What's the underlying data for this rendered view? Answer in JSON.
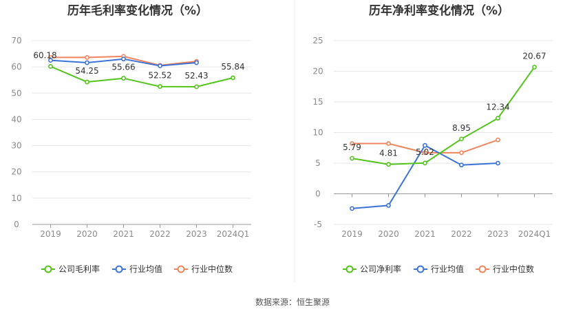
{
  "source_label": "数据来源：恒生聚源",
  "legend_colors": {
    "company": "#52c41a",
    "industry_avg": "#3a72d8",
    "industry_median": "#f0845c"
  },
  "chart_data": [
    {
      "type": "line",
      "title": "历年毛利率变化情况（%）",
      "categories": [
        "2019",
        "2020",
        "2021",
        "2022",
        "2023",
        "2024Q1"
      ],
      "ylim": [
        0,
        70
      ],
      "yticks": [
        0,
        10,
        20,
        30,
        40,
        50,
        60,
        70
      ],
      "grid": true,
      "legend_position": "bottom",
      "series": [
        {
          "name": "公司毛利率",
          "color": "#52c41a",
          "values": [
            60.18,
            54.25,
            55.66,
            52.52,
            52.43,
            55.84
          ],
          "labels": [
            "60.18",
            "54.25",
            "55.66",
            "52.52",
            "52.43",
            "55.84"
          ]
        },
        {
          "name": "行业均值",
          "color": "#3a72d8",
          "values": [
            62.5,
            61.6,
            63.0,
            60.4,
            61.6,
            null
          ]
        },
        {
          "name": "行业中位数",
          "color": "#f0845c",
          "values": [
            63.6,
            63.6,
            64.0,
            60.6,
            62.1,
            null
          ]
        }
      ]
    },
    {
      "type": "line",
      "title": "历年净利率变化情况（%）",
      "categories": [
        "2019",
        "2020",
        "2021",
        "2022",
        "2023",
        "2024Q1"
      ],
      "ylim": [
        -5,
        25
      ],
      "yticks": [
        -5,
        0,
        5,
        10,
        15,
        20,
        25
      ],
      "grid": true,
      "legend_position": "bottom",
      "series": [
        {
          "name": "公司净利率",
          "color": "#52c41a",
          "values": [
            5.79,
            4.81,
            5.02,
            8.95,
            12.34,
            20.67
          ],
          "labels": [
            "5.79",
            "4.81",
            "5.02",
            "8.95",
            "12.34",
            "20.67"
          ]
        },
        {
          "name": "行业均值",
          "color": "#3a72d8",
          "values": [
            -2.4,
            -1.9,
            7.9,
            4.7,
            5.0,
            null
          ]
        },
        {
          "name": "行业中位数",
          "color": "#f0845c",
          "values": [
            8.2,
            8.2,
            6.7,
            6.7,
            8.8,
            null
          ]
        }
      ]
    }
  ]
}
